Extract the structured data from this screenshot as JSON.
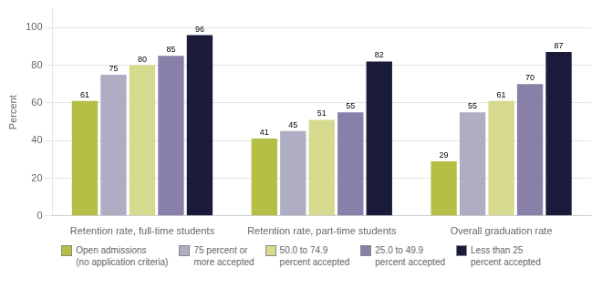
{
  "chart_data": {
    "type": "bar",
    "ylabel": "Percent",
    "categories": [
      "Retention rate, full-time students",
      "Retention rate, part-time students",
      "Overall graduation rate"
    ],
    "series": [
      {
        "name": "Open admissions\n(no application criteria)",
        "color": "#b5bf45",
        "values": [
          61,
          41,
          29
        ]
      },
      {
        "name": "75 percent or\nmore accepted",
        "color": "#aeadc4",
        "values": [
          75,
          45,
          55
        ]
      },
      {
        "name": "50.0 to 74.9\npercent accepted",
        "color": "#d6da8e",
        "values": [
          80,
          51,
          61
        ]
      },
      {
        "name": "25.0 to 49.9\npercent accepted",
        "color": "#8880a8",
        "values": [
          85,
          55,
          70
        ]
      },
      {
        "name": "Less than 25\npercent accepted",
        "color": "#1a1a3a",
        "values": [
          96,
          82,
          87
        ]
      }
    ],
    "ylim": [
      0,
      110
    ],
    "yticks": [
      0,
      20,
      40,
      60,
      80,
      100
    ],
    "grid": true,
    "legend": "bottom",
    "data_labels": true
  }
}
